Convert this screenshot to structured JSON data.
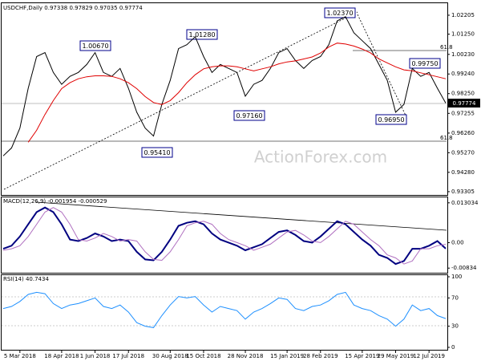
{
  "chart_data": [
    {
      "type": "line",
      "title": "USDCHF,Daily 0.97338 0.97829 0.97035 0.97774",
      "categories": [
        null,
        null,
        "5 Mar 2018",
        null,
        null,
        null,
        null,
        "18 Apr 2018",
        null,
        null,
        null,
        "1 Jun 2018",
        null,
        null,
        null,
        "17 Jul 2018",
        null,
        null,
        null,
        null,
        "30 Aug 2018",
        null,
        null,
        null,
        "15 Oct 2018",
        null,
        null,
        null,
        null,
        "28 Nov 2018",
        null,
        null,
        null,
        null,
        "15 Jan 2019",
        null,
        null,
        null,
        "28 Feb 2019",
        null,
        null,
        null,
        null,
        "15 Apr 2019",
        null,
        null,
        null,
        "29 May 2019",
        null,
        null,
        null,
        "12 Jul 2019",
        null,
        null
      ],
      "series": [
        {
          "name": "USDCHF",
          "color": "#000000",
          "values": [
            0.9511,
            0.9551,
            0.9651,
            0.9852,
            1.0012,
            1.0032,
            0.9932,
            0.9872,
            0.9912,
            0.9932,
            0.9972,
            1.0032,
            0.9932,
            0.9912,
            0.9952,
            0.9852,
            0.9731,
            0.9651,
            0.9611,
            0.9771,
            0.9892,
            1.0052,
            1.0072,
            1.0112,
            1.0012,
            0.9932,
            0.9972,
            0.9952,
            0.9932,
            0.9812,
            0.9872,
            0.9892,
            0.9952,
            1.0032,
            1.0052,
            0.9992,
            0.9952,
            0.9992,
            1.0012,
            1.0072,
            1.0192,
            1.0213,
            1.0132,
            1.0092,
            1.0052,
            0.9972,
            0.9892,
            0.9731,
            0.9771,
            0.9952,
            0.9912,
            0.9932,
            0.9852,
            0.97774
          ]
        },
        {
          "name": "MA",
          "color": "#e00000",
          "values": [
            null,
            null,
            null,
            0.958,
            0.964,
            0.972,
            0.979,
            0.985,
            0.988,
            0.99,
            0.991,
            0.9915,
            0.9915,
            0.9912,
            0.99,
            0.988,
            0.985,
            0.981,
            0.978,
            0.977,
            0.979,
            0.983,
            0.988,
            0.992,
            0.995,
            0.996,
            0.9965,
            0.9965,
            0.996,
            0.995,
            0.994,
            0.995,
            0.996,
            0.9975,
            0.9985,
            0.999,
            1.0,
            1.001,
            1.003,
            1.006,
            1.008,
            1.0075,
            1.0065,
            1.005,
            1.003,
            1.0,
            0.998,
            0.996,
            0.9945,
            0.994,
            0.993,
            0.992,
            0.991,
            0.99
          ]
        }
      ],
      "ylim": [
        0.9318,
        1.0273
      ],
      "yticks": [
        1.02205,
        {
          "value": 1.0125,
          "label": "1.01250"
        },
        {
          "value": 1.0023,
          "label": "1.00230"
        },
        {
          "value": 0.9924,
          "label": "0.99240"
        },
        {
          "value": 0.9825,
          "label": "0.98250"
        },
        0.97255,
        {
          "value": 0.9626,
          "label": "0.96260"
        },
        {
          "value": 0.9527,
          "label": "0.95270"
        },
        {
          "value": 0.9428,
          "label": "0.94280"
        },
        0.93305
      ],
      "annotations": [
        "1.00670",
        "1.01280",
        "0.95410",
        "0.97160",
        "1.02370",
        "0.99750",
        "0.96950",
        "0.97774",
        "61.8",
        "61.8",
        "ActionForex.com"
      ]
    },
    {
      "type": "line",
      "title": "MACD(12,26,9) -0.001954 -0.000529",
      "series": [
        {
          "name": "MACD",
          "color": "#000080",
          "values": [
            -0.002,
            -0.001,
            0.002,
            0.006,
            0.01,
            0.0115,
            0.01,
            0.006,
            0.001,
            0.0005,
            0.0015,
            0.003,
            0.002,
            0.0005,
            0.001,
            0.0005,
            -0.003,
            -0.0055,
            -0.0058,
            -0.003,
            0.001,
            0.0055,
            0.0065,
            0.007,
            0.006,
            0.003,
            0.001,
            0,
            -0.001,
            -0.0025,
            -0.0015,
            -0.0005,
            0.0015,
            0.0035,
            0.004,
            0.0025,
            0.0005,
            0,
            0.002,
            0.0045,
            0.007,
            0.006,
            0.0035,
            0.001,
            -0.001,
            -0.004,
            -0.005,
            -0.007,
            -0.006,
            -0.002,
            -0.002,
            -0.001,
            0.0005,
            -0.001954
          ]
        },
        {
          "name": "Signal",
          "color": "#b070c0",
          "values": [
            -0.0025,
            -0.002,
            -0.001,
            0.002,
            0.006,
            0.01,
            0.0115,
            0.01,
            0.006,
            0.001,
            0.0005,
            0.0015,
            0.003,
            0.002,
            0.0005,
            0.001,
            0.0005,
            -0.003,
            -0.0055,
            -0.0058,
            -0.003,
            0.001,
            0.0055,
            0.0065,
            0.007,
            0.006,
            0.003,
            0.001,
            0,
            -0.001,
            -0.0025,
            -0.0015,
            -0.0005,
            0.0015,
            0.0035,
            0.004,
            0.0025,
            0.0005,
            0,
            0.002,
            0.0045,
            0.007,
            0.006,
            0.0035,
            0.001,
            -0.001,
            -0.004,
            -0.005,
            -0.007,
            -0.006,
            -0.002,
            -0.002,
            -0.001,
            -0.000529
          ]
        }
      ],
      "ylim": [
        -0.0096,
        0.0143
      ],
      "yticks": [
        0.013034,
        {
          "value": 0,
          "label": "0.00"
        },
        -0.00834
      ]
    },
    {
      "type": "line",
      "title": "RSI(14) 40.7434",
      "series": [
        {
          "name": "RSI",
          "color": "#1e90ff",
          "values": [
            55,
            58,
            65,
            75,
            78,
            76,
            62,
            55,
            60,
            62,
            66,
            70,
            58,
            55,
            60,
            50,
            35,
            30,
            28,
            45,
            60,
            72,
            70,
            72,
            60,
            50,
            58,
            55,
            52,
            40,
            50,
            55,
            62,
            70,
            68,
            55,
            52,
            58,
            60,
            66,
            75,
            78,
            60,
            55,
            52,
            45,
            40,
            30,
            40,
            60,
            52,
            55,
            45,
            40.7434
          ]
        }
      ],
      "ylim": [
        0,
        100
      ],
      "yticks": [
        100,
        70,
        30,
        0
      ]
    }
  ]
}
